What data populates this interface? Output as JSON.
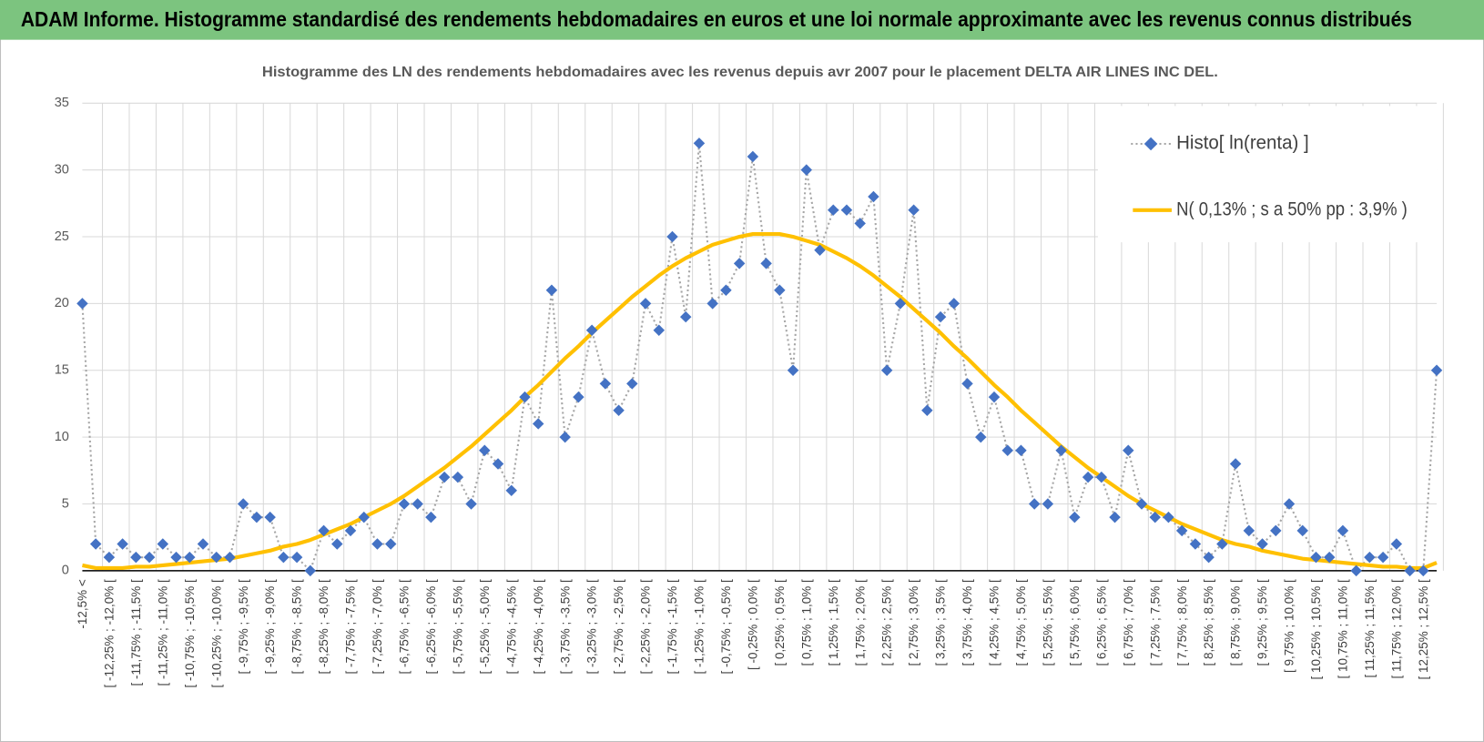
{
  "header": {
    "title": "ADAM Informe. Histogramme standardisé des rendements hebdomadaires en euros et une loi normale approximante avec les revenus connus distribués"
  },
  "chart_data": {
    "type": "line",
    "title": "Histogramme des LN des rendements hebdomadaires avec les revenus depuis avr 2007 pour le placement DELTA AIR LINES INC DEL.",
    "categories": [
      "-12,5% <",
      null,
      "[ -12,25% ; -12,0% [",
      null,
      "[ -11,75% ; -11,5% [",
      null,
      "[ -11,25% ; -11,0% [",
      null,
      "[ -10,75% ; -10,5% [",
      null,
      "[ -10,25% ; -10,0% [",
      null,
      "[ -9,75% ; -9,5% [",
      null,
      "[ -9,25% ; -9,0% [",
      null,
      "[ -8,75% ; -8,5% [",
      null,
      "[ -8,25% ; -8,0% [",
      null,
      "[ -7,75% ; -7,5% [",
      null,
      "[ -7,25% ; -7,0% [",
      null,
      "[ -6,75% ; -6,5% [",
      null,
      "[ -6,25% ; -6,0% [",
      null,
      "[ -5,75% ; -5,5% [",
      null,
      "[ -5,25% ; -5,0% [",
      null,
      "[ -4,75% ; -4,5% [",
      null,
      "[ -4,25% ; -4,0% [",
      null,
      "[ -3,75% ; -3,5% [",
      null,
      "[ -3,25% ; -3,0% [",
      null,
      "[ -2,75% ; -2,5% [",
      null,
      "[ -2,25% ; -2,0% [",
      null,
      "[ -1,75% ; -1,5% [",
      null,
      "[ -1,25% ; -1,0% [",
      null,
      "[ -0,75% ; -0,5% [",
      null,
      "[ -0,25% ; 0,0% [",
      null,
      "[ 0,25% ; 0,5% [",
      null,
      "[ 0,75% ; 1,0% [",
      null,
      "[ 1,25% ; 1,5% [",
      null,
      "[ 1,75% ; 2,0% [",
      null,
      "[ 2,25% ; 2,5% [",
      null,
      "[ 2,75% ; 3,0% [",
      null,
      "[ 3,25% ; 3,5% [",
      null,
      "[ 3,75% ; 4,0% [",
      null,
      "[ 4,25% ; 4,5% [",
      null,
      "[ 4,75% ; 5,0% [",
      null,
      "[ 5,25% ; 5,5% [",
      null,
      "[ 5,75% ; 6,0% [",
      null,
      "[ 6,25% ; 6,5% [",
      null,
      "[ 6,75% ; 7,0% [",
      null,
      "[ 7,25% ; 7,5% [",
      null,
      "[ 7,75% ; 8,0% [",
      null,
      "[ 8,25% ; 8,5% [",
      null,
      "[ 8,75% ; 9,0% [",
      null,
      "[ 9,25% ; 9,5% [",
      null,
      "[ 9,75% ; 10,0% [",
      null,
      "[ 10,25% ; 10,5% [",
      null,
      "[ 10,75% ; 11,0% [",
      null,
      "[ 11,25% ; 11,5% [",
      null,
      "[ 11,75% ; 12,0% [",
      null,
      "[ 12,25% ; 12,5% [",
      null
    ],
    "series": [
      {
        "name": "Histo[ ln(renta) ]",
        "color": "#4472c4",
        "line_color": "#a6a6a6",
        "marker": "diamond",
        "values": [
          20,
          2,
          1,
          2,
          1,
          1,
          2,
          1,
          1,
          2,
          1,
          1,
          5,
          4,
          4,
          1,
          1,
          0,
          3,
          2,
          3,
          4,
          2,
          2,
          5,
          5,
          4,
          7,
          7,
          5,
          9,
          8,
          6,
          13,
          11,
          21,
          10,
          13,
          18,
          14,
          12,
          14,
          20,
          18,
          25,
          19,
          32,
          20,
          21,
          23,
          31,
          23,
          21,
          15,
          30,
          24,
          27,
          27,
          26,
          28,
          15,
          20,
          27,
          12,
          19,
          20,
          14,
          10,
          13,
          9,
          9,
          5,
          5,
          9,
          4,
          7,
          7,
          4,
          9,
          5,
          4,
          4,
          3,
          2,
          1,
          2,
          8,
          3,
          2,
          3,
          5,
          3,
          1,
          1,
          3,
          0,
          1,
          1,
          2,
          0,
          0,
          15
        ]
      },
      {
        "name": "N( 0,13% ; s a 50% pp : 3,9% )",
        "color": "#ffc000",
        "values": [
          0.4,
          0.2,
          0.2,
          0.2,
          0.3,
          0.3,
          0.4,
          0.5,
          0.6,
          0.7,
          0.8,
          0.9,
          1.1,
          1.3,
          1.5,
          1.8,
          2.0,
          2.3,
          2.7,
          3.1,
          3.5,
          4.0,
          4.5,
          5.0,
          5.6,
          6.3,
          7.0,
          7.7,
          8.5,
          9.3,
          10.2,
          11.1,
          12.0,
          13.0,
          13.9,
          14.9,
          15.9,
          16.8,
          17.8,
          18.7,
          19.6,
          20.5,
          21.3,
          22.1,
          22.8,
          23.4,
          23.9,
          24.4,
          24.7,
          25.0,
          25.2,
          25.2,
          25.2,
          25.0,
          24.7,
          24.4,
          23.9,
          23.4,
          22.8,
          22.1,
          21.3,
          20.5,
          19.6,
          18.7,
          17.8,
          16.8,
          15.9,
          14.9,
          13.9,
          13.0,
          12.0,
          11.1,
          10.2,
          9.3,
          8.5,
          7.7,
          7.0,
          6.3,
          5.6,
          5.0,
          4.5,
          4.0,
          3.5,
          3.1,
          2.7,
          2.3,
          2.0,
          1.8,
          1.5,
          1.3,
          1.1,
          0.9,
          0.8,
          0.7,
          0.6,
          0.5,
          0.4,
          0.3,
          0.3,
          0.2,
          0.2,
          0.6
        ]
      }
    ],
    "ylim": [
      0,
      35
    ],
    "yticks": [
      0,
      5,
      10,
      15,
      20,
      25,
      30,
      35
    ],
    "grid": true,
    "legend": "top-right"
  }
}
